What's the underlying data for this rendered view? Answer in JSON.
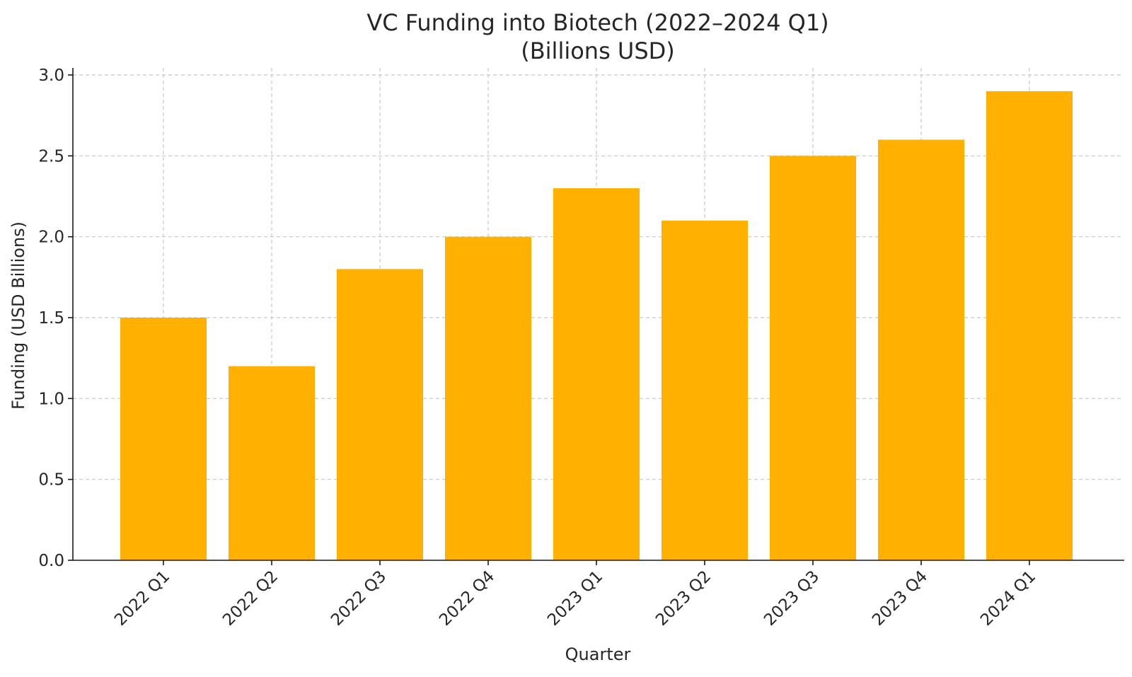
{
  "chart_data": {
    "type": "bar",
    "title": "VC Funding into Biotech (2022–2024 Q1)",
    "subtitle": "(Billions USD)",
    "xlabel": "Quarter",
    "ylabel": "Funding (USD Billions)",
    "categories": [
      "2022 Q1",
      "2022 Q2",
      "2022 Q3",
      "2022 Q4",
      "2023 Q1",
      "2023 Q2",
      "2023 Q3",
      "2023 Q4",
      "2024 Q1"
    ],
    "values": [
      1.5,
      1.2,
      1.8,
      2.0,
      2.3,
      2.1,
      2.5,
      2.6,
      2.9
    ],
    "ylim": [
      0,
      3.0
    ],
    "yticks": [
      "0.0",
      "0.5",
      "1.0",
      "1.5",
      "2.0",
      "2.5",
      "3.0"
    ],
    "bar_color": "#FFB000",
    "grid": true,
    "legend": "none"
  }
}
